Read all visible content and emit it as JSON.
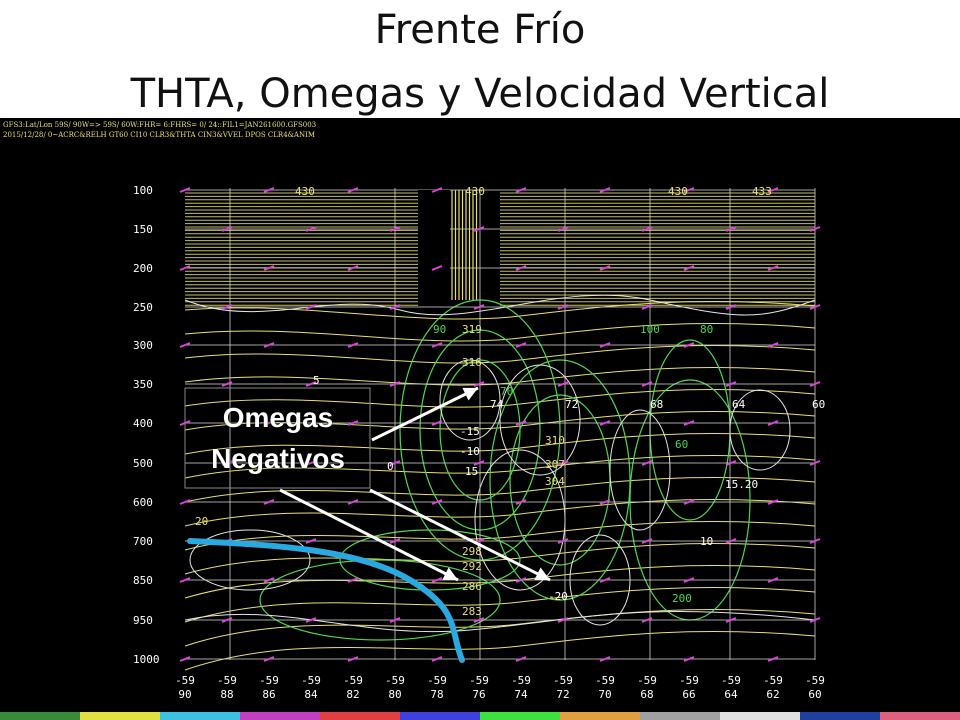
{
  "slide": {
    "title_line1": "Frente Frío",
    "title_line2": "THTA, Omegas y Velocidad Vertical"
  },
  "panel": {
    "header_line1": "GFS3:Lat/Lon 59S/ 90W=> 59S/ 60W:FHR= 6:FHRS= 0/ 24::FIL1=JAN261600.GFS003",
    "header_line2": "2015/12/28/ 0~ACRC&RELH GT60 CI10 CLR3&THTA CIN3&VVEL DPOS CLR4&ANIM",
    "pressure_levels": [
      "100",
      "150",
      "200",
      "250",
      "300",
      "350",
      "400",
      "500",
      "600",
      "700",
      "850",
      "950",
      "1000"
    ],
    "x_labels": [
      {
        "lat": "-59",
        "lon": "90"
      },
      {
        "lat": "-59",
        "lon": "88"
      },
      {
        "lat": "-59",
        "lon": "86"
      },
      {
        "lat": "-59",
        "lon": "84"
      },
      {
        "lat": "-59",
        "lon": "82"
      },
      {
        "lat": "-59",
        "lon": "80"
      },
      {
        "lat": "-59",
        "lon": "78"
      },
      {
        "lat": "-59",
        "lon": "76"
      },
      {
        "lat": "-59",
        "lon": "74"
      },
      {
        "lat": "-59",
        "lon": "72"
      },
      {
        "lat": "-59",
        "lon": "70"
      },
      {
        "lat": "-59",
        "lon": "68"
      },
      {
        "lat": "-59",
        "lon": "66"
      },
      {
        "lat": "-59",
        "lon": "64"
      },
      {
        "lat": "-59",
        "lon": "62"
      },
      {
        "lat": "-59",
        "lon": "60"
      }
    ],
    "contour_labels": [
      {
        "text": "430",
        "color": "#e8e070"
      },
      {
        "text": "430",
        "color": "#e8e070"
      },
      {
        "text": "430",
        "color": "#e8e070"
      },
      {
        "text": "433",
        "color": "#e8e070"
      },
      {
        "text": "319",
        "color": "#e8e070"
      },
      {
        "text": "316",
        "color": "#e8e070"
      },
      {
        "text": "310",
        "color": "#e8e070"
      },
      {
        "text": "307",
        "color": "#e8e070"
      },
      {
        "text": "304",
        "color": "#e8e070"
      },
      {
        "text": "298",
        "color": "#e8e070"
      },
      {
        "text": "292",
        "color": "#e8e070"
      },
      {
        "text": "286",
        "color": "#e8e070"
      },
      {
        "text": "283",
        "color": "#e8e070"
      },
      {
        "text": "90",
        "color": "#4fd64f"
      },
      {
        "text": "100",
        "color": "#4fd64f"
      },
      {
        "text": "70",
        "color": "#4fd64f"
      },
      {
        "text": "80",
        "color": "#4fd64f"
      },
      {
        "text": "60",
        "color": "#4fd64f"
      },
      {
        "text": "20",
        "color": "#e8e070"
      },
      {
        "text": "15",
        "color": "#ffffff"
      },
      {
        "text": "-15",
        "color": "#ffffff"
      },
      {
        "text": "-10",
        "color": "#ffffff"
      },
      {
        "text": "-20",
        "color": "#ffffff"
      },
      {
        "text": "200",
        "color": "#4fd64f"
      },
      {
        "text": "15.20",
        "color": "#ffffff"
      },
      {
        "text": "0",
        "color": "#ffffff"
      },
      {
        "text": "5",
        "color": "#ffffff"
      },
      {
        "text": "10",
        "color": "#ffffff"
      },
      {
        "text": "68",
        "color": "#ffffff"
      },
      {
        "text": "64",
        "color": "#ffffff"
      },
      {
        "text": "60",
        "color": "#ffffff"
      },
      {
        "text": "72",
        "color": "#ffffff"
      },
      {
        "text": "74",
        "color": "#ffffff"
      }
    ]
  },
  "annotation": {
    "line1": "Omegas",
    "line2": "Negativos"
  },
  "colors": {
    "theta": "#e8e070",
    "relh": "#4fd64f",
    "omega": "#e6e6e6",
    "wind_barbs": "#e040e0",
    "front": "#2aa8e0",
    "grid": "#cfcfcf"
  }
}
